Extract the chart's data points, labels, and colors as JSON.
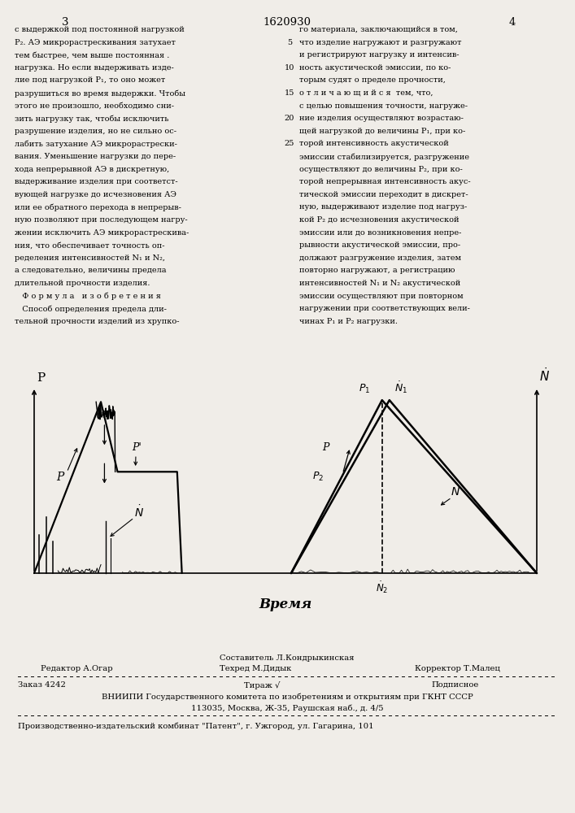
{
  "page_color": "#f0ede8",
  "header_number_left": "3",
  "header_title": "1620930",
  "header_number_right": "4",
  "col1_text": [
    "с выдержкой под постоянной нагрузкой",
    "P₂. АЭ микрорастрескивания затухает",
    "тем быстрее, чем выше постоянная .",
    "нагрузка. Но если выдерживать изде-",
    "лие под нагрузкой P₁, то оно может",
    "разрушиться во время выдержки. Чтобы",
    "этого не произошло, необходимо сни-",
    "зить нагрузку так, чтобы исключить",
    "разрушение изделия, но не сильно ос-",
    "лабить затухание АЭ микрорастрески-",
    "вания. Уменьшение нагрузки до пере-",
    "хода непрерывной АЭ в дискретную,",
    "выдерживание изделия при соответст-",
    "вующей нагрузке до исчезновения АЭ",
    "или ее обратного перехода в непрерыв-",
    "ную позволяют при последующем нагру-",
    "жении исключить АЭ микрорастрескива-",
    "ния, что обеспечивает точность оп-",
    "ределения интенсивностей N₁ и N₂,",
    "а следовательно, величины предела",
    "длительной прочности изделия.",
    "   Ф о р м у л а   и з о б р е т е н и я",
    "   Способ определения предела дли-",
    "тельной прочности изделий из хрупко-"
  ],
  "col2_text": [
    "го материала, заключающийся в том,",
    "что изделие нагружают и разгружают",
    "и регистрируют нагрузку и интенсив-",
    "ность акустической эмиссии, по ко-",
    "торым судят о пределе прочности,",
    "о т л и ч а ю щ и й с я  тем, что,",
    "с целью повышения точности, нагруже-",
    "ние изделия осуществляют возрастаю-",
    "щей нагрузкой до величины P₁, при ко-",
    "торой интенсивность акустической",
    "эмиссии стабилизируется, разгружение",
    "осуществляют до величины P₂, при ко-",
    "торой непрерывная интенсивность акус-",
    "тической эмиссии переходит в дискрет-",
    "ную, выдерживают изделие под нагруз-",
    "кой P₂ до исчезновения акустической",
    "эмиссии или до возникновения непре-",
    "рывности акустической эмиссии, про-",
    "должают разгружение изделия, затем",
    "повторно нагружают, а регистрацию",
    "интенсивностей N₁ и N₂ акустической",
    "эмиссии осуществляют при повторном",
    "нагружении при соответствующих вели-",
    "чинах P₁ и P₂ нагрузки."
  ],
  "line_numbers": {
    "1": "5",
    "3": "10",
    "5": "15",
    "7": "20",
    "9": "25"
  },
  "xlabel": "Время",
  "footer_editor": "Редактор А.Огар",
  "footer_compiler": "Составитель Л.Кондрыкинская",
  "footer_techred": "Техред М.Дидык",
  "footer_corrector": "Корректор Т.Малец",
  "footer_order": "Заказ 4242",
  "footer_tirage": "Тираж √",
  "footer_podp": "Подписное",
  "footer_vniip": "ВНИИПИ Государственного комитета по изобретениям и открытиям при ГКНТ СССР",
  "footer_addr": "113035, Москва, Ж-35, Раушская наб., д. 4/5",
  "footer_patent": "Производственно-издательский комбинат \"Патент\", г. Ужгород, ул. Гагарина, 101"
}
